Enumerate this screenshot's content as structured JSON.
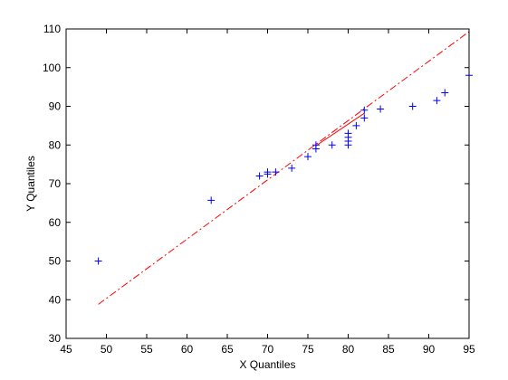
{
  "chart_data": {
    "type": "scatter",
    "title": "",
    "xlabel": "X Quantiles",
    "ylabel": "Y Quantiles",
    "xlim": [
      45,
      95
    ],
    "ylim": [
      30,
      110
    ],
    "x_ticks": [
      45,
      50,
      55,
      60,
      65,
      70,
      75,
      80,
      85,
      90,
      95
    ],
    "y_ticks": [
      30,
      40,
      50,
      60,
      70,
      80,
      90,
      100,
      110
    ],
    "grid": false,
    "series": [
      {
        "marker": "+",
        "color": "#0000ff",
        "points": [
          {
            "x": 49,
            "y": 50
          },
          {
            "x": 63,
            "y": 65.7
          },
          {
            "x": 69,
            "y": 72
          },
          {
            "x": 70,
            "y": 72.5
          },
          {
            "x": 70,
            "y": 73
          },
          {
            "x": 71,
            "y": 73
          },
          {
            "x": 73,
            "y": 74
          },
          {
            "x": 75,
            "y": 77
          },
          {
            "x": 76,
            "y": 79
          },
          {
            "x": 76,
            "y": 80
          },
          {
            "x": 78,
            "y": 80
          },
          {
            "x": 80,
            "y": 80
          },
          {
            "x": 80,
            "y": 81
          },
          {
            "x": 80,
            "y": 82
          },
          {
            "x": 80,
            "y": 83
          },
          {
            "x": 81,
            "y": 85
          },
          {
            "x": 82,
            "y": 87
          },
          {
            "x": 82,
            "y": 89
          },
          {
            "x": 84,
            "y": 89.3
          },
          {
            "x": 88,
            "y": 90
          },
          {
            "x": 91,
            "y": 91.5
          },
          {
            "x": 92,
            "y": 93.5
          },
          {
            "x": 95,
            "y": 98
          }
        ]
      }
    ],
    "reference_lines": [
      {
        "style": "solid",
        "color": "#ff0000",
        "from": {
          "x": 76,
          "y": 79.8
        },
        "to": {
          "x": 82,
          "y": 88.2
        }
      },
      {
        "style": "dash-dot",
        "color": "#ff0000",
        "from": {
          "x": 49,
          "y": 38.8
        },
        "to": {
          "x": 95,
          "y": 109.3
        }
      }
    ]
  }
}
